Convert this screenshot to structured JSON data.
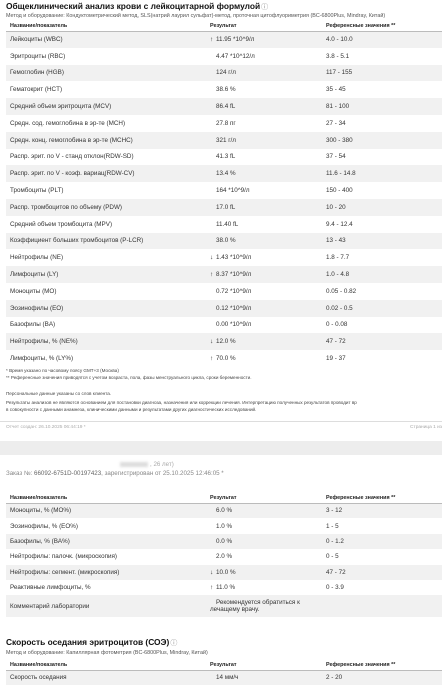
{
  "section1": {
    "title": "Общеклинический анализ крови с лейкоцитарной формулой",
    "info_icon": "info-circle-icon",
    "method": "Метод и оборудование: Кондуктометрический метод, SLS(натрий лаурил сульфат)-метод, проточная цитофлуориметрия (BC-6800Plus, Mindray, Китай)",
    "headers": [
      "Название/показатель",
      "Результат",
      "Референсные значения **"
    ],
    "rows": [
      {
        "name": "Лейкоциты (WBC)",
        "arrow": "↑",
        "result": "11.95 *10^9/л",
        "ref": "4.0 - 10.0"
      },
      {
        "name": "Эритроциты (RBC)",
        "arrow": "",
        "result": "4.47 *10^12/л",
        "ref": "3.8 - 5.1"
      },
      {
        "name": "Гемоглобин (HGB)",
        "arrow": "",
        "result": "124 г/л",
        "ref": "117 - 155"
      },
      {
        "name": "Гематокрит (HCT)",
        "arrow": "",
        "result": "38.6 %",
        "ref": "35 - 45"
      },
      {
        "name": "Средний объем эритроцита (MCV)",
        "arrow": "",
        "result": "86.4 fL",
        "ref": "81 - 100"
      },
      {
        "name": "Средн. сод. гемоглобина в эр-те (MCH)",
        "arrow": "",
        "result": "27.8 пг",
        "ref": "27 - 34"
      },
      {
        "name": "Средн. конц. гемоглобина в эр-те (MCHC)",
        "arrow": "",
        "result": "321 г/л",
        "ref": "300 - 380"
      },
      {
        "name": "Распр. эрит. по V - станд отклон(RDW-SD)",
        "arrow": "",
        "result": "41.3 fL",
        "ref": "37 - 54"
      },
      {
        "name": "Распр. эрит. по V - коэф. вариац(RDW-CV)",
        "arrow": "",
        "result": "13.4 %",
        "ref": "11.6 - 14.8"
      },
      {
        "name": "Тромбоциты (PLT)",
        "arrow": "",
        "result": "164 *10^9/л",
        "ref": "150 - 400"
      },
      {
        "name": "Распр. тромбоцитов по объему (PDW)",
        "arrow": "",
        "result": "17.0 fL",
        "ref": "10 - 20"
      },
      {
        "name": "Средний объем тромбоцита (MPV)",
        "arrow": "",
        "result": "11.40 fL",
        "ref": "9.4 - 12.4"
      },
      {
        "name": "Коэффициент больших тромбоцитов (P-LCR)",
        "arrow": "",
        "result": "38.0 %",
        "ref": "13 - 43"
      },
      {
        "name": "Нейтрофилы (NE)",
        "arrow": "↓",
        "result": "1.43 *10^9/л",
        "ref": "1.8 - 7.7"
      },
      {
        "name": "Лимфоциты (LY)",
        "arrow": "↑",
        "result": "8.37 *10^9/л",
        "ref": "1.0 - 4.8"
      },
      {
        "name": "Моноциты (MO)",
        "arrow": "",
        "result": "0.72 *10^9/л",
        "ref": "0.05 - 0.82"
      },
      {
        "name": "Эозинофилы (EO)",
        "arrow": "",
        "result": "0.12 *10^9/л",
        "ref": "0.02 - 0.5"
      },
      {
        "name": "Базофилы (BA)",
        "arrow": "",
        "result": "0.00 *10^9/л",
        "ref": "0 - 0.08"
      },
      {
        "name": "Нейтрофилы, % (NE%)",
        "arrow": "↓",
        "result": "12.0 %",
        "ref": "47 - 72"
      },
      {
        "name": "Лимфоциты, % (LY%)",
        "arrow": "↑",
        "result": "70.0 %",
        "ref": "19 - 37"
      }
    ],
    "notes": [
      "* Время указано по часовому поясу GMT+3 (Москва)",
      "** Референсные значения приводятся с учетом возраста, пола, фазы менструального цикла, сроки беременности.",
      "Персональные данные указаны со слов клиента.",
      "Результаты анализов не являются основанием для постановки диагноза, назначения или коррекции лечения. Интерпретацию полученных результатов проводит вр",
      "в совокупности с данными анамнеза, клиническими данными и результатами других диагностических исследований."
    ],
    "footer_report": "Отчет создан: 26.10.2025 06:44:19 *",
    "footer_page": "Страница 1 из"
  },
  "section2": {
    "patient_age": ", 26 лет)",
    "order_label": "Заказ №:",
    "order_number": "66092-6751D-00197423",
    "order_registered": ", зарегистрирован от 25.10.2025 12:46:05 *",
    "headers": [
      "Название/показатель",
      "Результат",
      "Референсные значения **"
    ],
    "rows": [
      {
        "name": "Моноциты, % (MO%)",
        "arrow": "",
        "result": "6.0 %",
        "ref": "3 - 12"
      },
      {
        "name": "Эозинофилы, % (EO%)",
        "arrow": "",
        "result": "1.0 %",
        "ref": "1 - 5"
      },
      {
        "name": "Базофилы, % (BA%)",
        "arrow": "",
        "result": "0.0 %",
        "ref": "0 - 1.2"
      },
      {
        "name": "Нейтрофилы: палочк. (микроскопия)",
        "arrow": "",
        "result": "2.0 %",
        "ref": "0 - 5"
      },
      {
        "name": "Нейтрофилы: сегмент. (микроскопия)",
        "arrow": "↓",
        "result": "10.0 %",
        "ref": "47 - 72"
      },
      {
        "name": "Реактивные лимфоциты, %",
        "arrow": "↑",
        "result": "11.0 %",
        "ref": "0 - 3.9"
      },
      {
        "name": "Комментарий лаборатории",
        "arrow": "",
        "result": "Рекомендуется обратиться к лечащему врачу.",
        "ref": ""
      }
    ]
  },
  "section3": {
    "title": "Скорость оседания эритроцитов (СОЭ)",
    "info_icon": "info-circle-icon",
    "method": "Метод и оборудование: Капиллярная фотометрия (BC-6800Plus, Mindray, Китай)",
    "headers": [
      "Название/показатель",
      "Результат",
      "Референсные значения **"
    ],
    "rows": [
      {
        "name": "Скорость оседания",
        "arrow": "",
        "result": "14 мм/ч",
        "ref": "2 - 20"
      }
    ]
  }
}
